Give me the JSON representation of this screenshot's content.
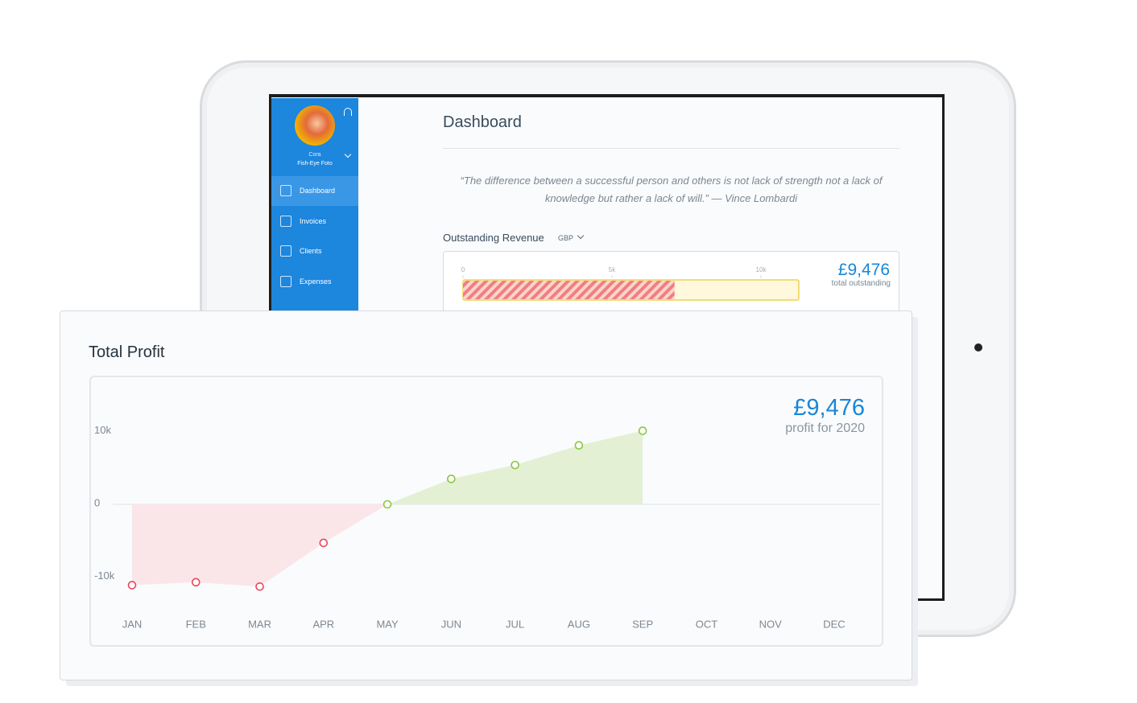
{
  "sidebar": {
    "user_name": "Cora",
    "company": "Fish-Eye Foto",
    "nav": [
      "Dashboard",
      "Invoices",
      "Clients",
      "Expenses"
    ],
    "active": 0
  },
  "dashboard": {
    "title": "Dashboard",
    "quote": "“The difference between a successful person and others is not lack of strength not a lack of knowledge but rather a lack of will.” — Vince Lombardi",
    "outstanding": {
      "label": "Outstanding Revenue",
      "currency": "GBP",
      "xlim": [
        0,
        11270
      ],
      "xticks": [
        0,
        {
          "value": 5000,
          "label": "5k"
        },
        {
          "value": 10000,
          "label": "10k"
        }
      ],
      "overdue": 7100,
      "total": "£9,476",
      "total_caption": "total outstanding"
    }
  },
  "profit_card": {
    "title": "Total Profit",
    "summary": "£9,476",
    "summary_caption": "profit for 2020",
    "chart_data": {
      "type": "area",
      "categories": [
        "JAN",
        "FEB",
        "MAR",
        "APR",
        "MAY",
        "JUN",
        "JUL",
        "AUG",
        "SEP",
        "OCT",
        "NOV",
        "DEC"
      ],
      "values": [
        -11100,
        -10700,
        -11300,
        -5300,
        0,
        3500,
        5400,
        8100,
        10100,
        null,
        null,
        null
      ],
      "ylim": [
        -15000,
        15000
      ],
      "yticks": [
        {
          "value": 10000,
          "label": "10k"
        },
        0,
        {
          "value": -10000,
          "label": "-10k"
        }
      ],
      "positive_color": "#8cc63f",
      "negative_color": "#e8495a",
      "positive_fill": "#e3f0d4",
      "negative_fill": "#fae6e9"
    }
  }
}
